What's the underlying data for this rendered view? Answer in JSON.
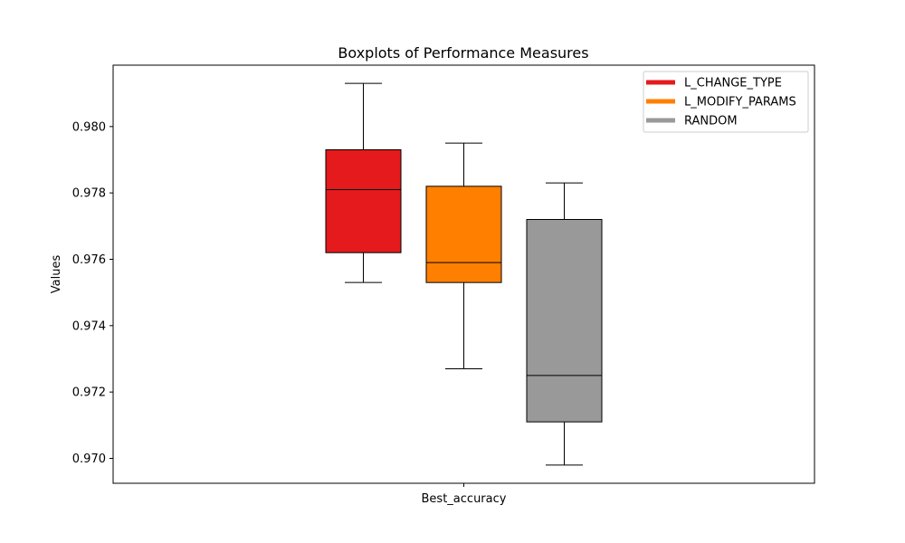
{
  "chart_data": {
    "type": "boxplot",
    "title": "Boxplots of Performance Measures",
    "xlabel": "",
    "ylabel": "Values",
    "categories": [
      "Best_accuracy"
    ],
    "ylim": [
      0.96925,
      0.98185
    ],
    "yticks": [
      0.97,
      0.972,
      0.974,
      0.976,
      0.978,
      0.98
    ],
    "ytick_labels": [
      "0.970",
      "0.972",
      "0.974",
      "0.976",
      "0.978",
      "0.980"
    ],
    "grid": false,
    "legend_position": "top-right",
    "series": [
      {
        "name": "L_CHANGE_TYPE",
        "color": "#e41a1c",
        "whisker_low": 0.9753,
        "q1": 0.9762,
        "median": 0.9781,
        "q3": 0.9793,
        "whisker_high": 0.9813
      },
      {
        "name": "L_MODIFY_PARAMS",
        "color": "#ff7f00",
        "whisker_low": 0.9727,
        "q1": 0.9753,
        "median": 0.9759,
        "q3": 0.9782,
        "whisker_high": 0.9795
      },
      {
        "name": "RANDOM",
        "color": "#999999",
        "whisker_low": 0.9698,
        "q1": 0.9711,
        "median": 0.9725,
        "q3": 0.9772,
        "whisker_high": 0.9783
      }
    ]
  }
}
